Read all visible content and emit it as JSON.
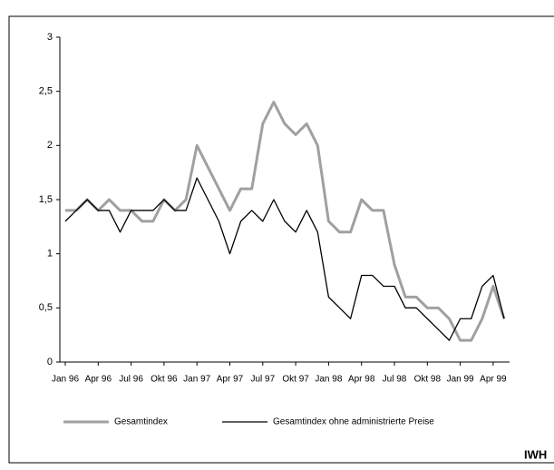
{
  "chart_data": {
    "type": "line",
    "categories": [
      "Jan 96",
      null,
      null,
      "Apr 96",
      null,
      null,
      "Jul 96",
      null,
      null,
      "Okt 96",
      null,
      null,
      "Jan 97",
      null,
      null,
      "Apr 97",
      null,
      null,
      "Jul 97",
      null,
      null,
      "Okt 97",
      null,
      null,
      "Jan 98",
      null,
      null,
      "Apr 98",
      null,
      null,
      "Jul 98",
      null,
      null,
      "Okt 98",
      null,
      null,
      "Jan 99",
      null,
      null,
      "Apr 99",
      null
    ],
    "series": [
      {
        "name": "Gesamtindex",
        "color": "#a0a0a0",
        "values": [
          1.4,
          1.4,
          1.5,
          1.4,
          1.5,
          1.4,
          1.4,
          1.3,
          1.3,
          1.5,
          1.4,
          1.5,
          2.0,
          1.8,
          1.6,
          1.4,
          1.6,
          1.6,
          2.2,
          2.4,
          2.2,
          2.1,
          2.2,
          2.0,
          1.3,
          1.2,
          1.2,
          1.5,
          1.4,
          1.4,
          0.9,
          0.6,
          0.6,
          0.5,
          0.5,
          0.4,
          0.2,
          0.2,
          0.4,
          0.7,
          0.4
        ]
      },
      {
        "name": "Gesamtindex ohne administrierte Preise",
        "color": "#000000",
        "values": [
          1.3,
          1.4,
          1.5,
          1.4,
          1.4,
          1.2,
          1.4,
          1.4,
          1.4,
          1.5,
          1.4,
          1.4,
          1.7,
          1.5,
          1.3,
          1.0,
          1.3,
          1.4,
          1.3,
          1.5,
          1.3,
          1.2,
          1.4,
          1.2,
          0.6,
          0.5,
          0.4,
          0.8,
          0.8,
          0.7,
          0.7,
          0.5,
          0.5,
          0.4,
          0.3,
          0.2,
          0.4,
          0.4,
          0.7,
          0.8,
          0.4
        ]
      }
    ],
    "ylim": [
      0,
      3
    ],
    "yticks": [
      0,
      {
        "value": 0.5,
        "label": "0,5"
      },
      1,
      {
        "value": 1.5,
        "label": "1,5"
      },
      2,
      {
        "value": 2.5,
        "label": "2,5"
      },
      3
    ],
    "grid": false,
    "source": "IWH"
  }
}
